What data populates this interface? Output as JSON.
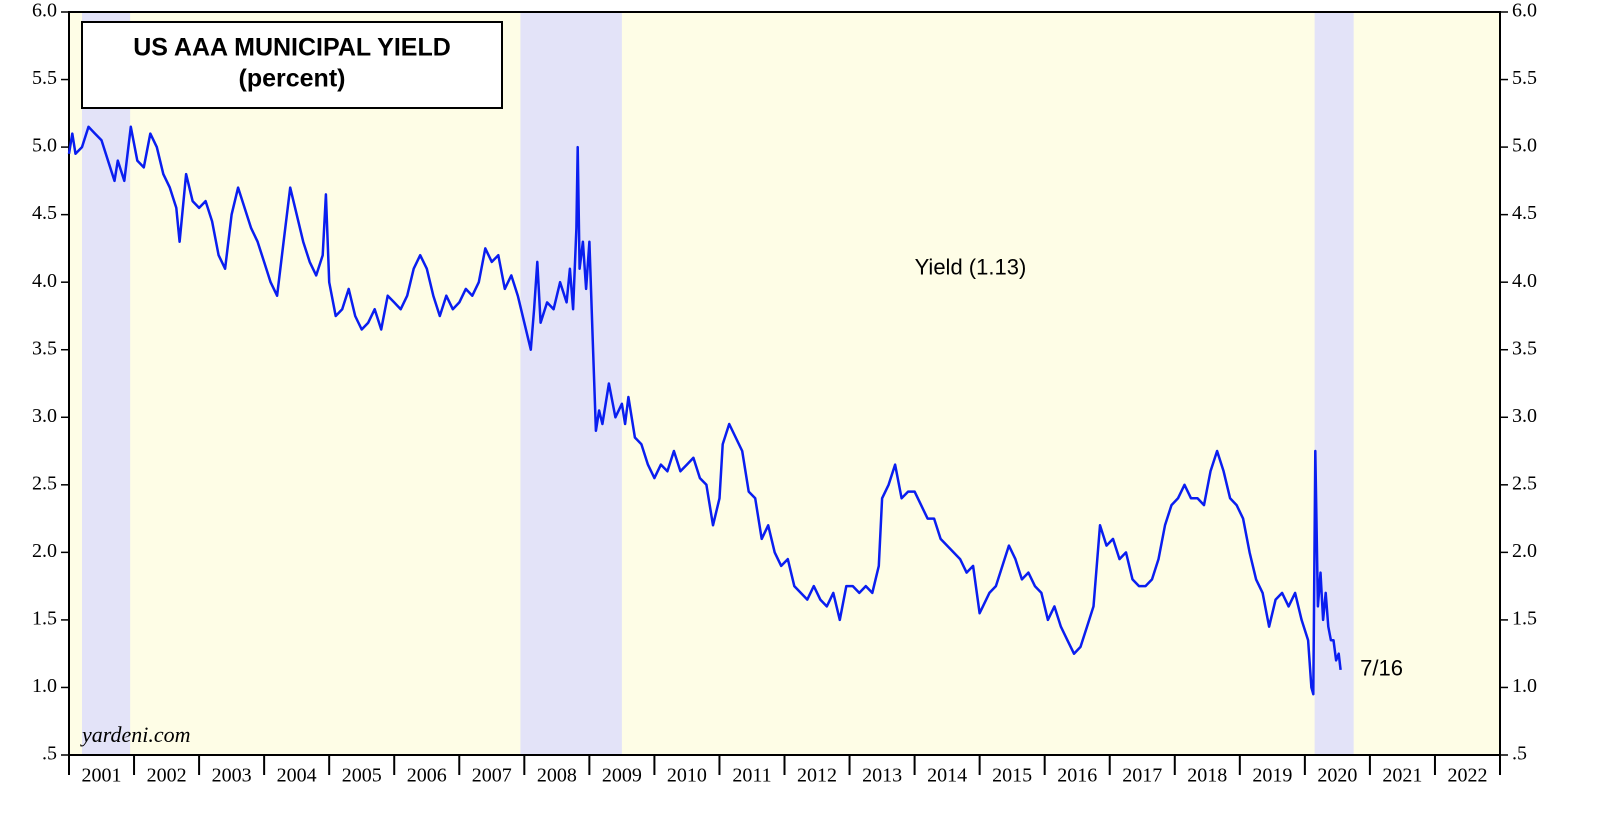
{
  "chart_data": {
    "type": "line",
    "title_lines": [
      "US AAA MUNICIPAL YIELD",
      "(percent)"
    ],
    "annotations": [
      {
        "text": "Yield (1.13)",
        "x": 2014.0,
        "y": 4.1
      },
      {
        "text": "7/16",
        "x": 2020.85,
        "y": 1.13
      }
    ],
    "source": "yardeni.com",
    "xlim": [
      2001,
      2023
    ],
    "xticks": [
      2001,
      2002,
      2003,
      2004,
      2005,
      2006,
      2007,
      2008,
      2009,
      2010,
      2011,
      2012,
      2013,
      2014,
      2015,
      2016,
      2017,
      2018,
      2019,
      2020,
      2021,
      2022
    ],
    "ylim": [
      0.5,
      6.0
    ],
    "yticks": [
      {
        "value": 0.5,
        "label": ".5"
      },
      {
        "value": 1.0,
        "label": "1.0"
      },
      {
        "value": 1.5,
        "label": "1.5"
      },
      {
        "value": 2.0,
        "label": "2.0"
      },
      {
        "value": 2.5,
        "label": "2.5"
      },
      {
        "value": 3.0,
        "label": "3.0"
      },
      {
        "value": 3.5,
        "label": "3.5"
      },
      {
        "value": 4.0,
        "label": "4.0"
      },
      {
        "value": 4.5,
        "label": "4.5"
      },
      {
        "value": 5.0,
        "label": "5.0"
      },
      {
        "value": 5.5,
        "label": "5.5"
      },
      {
        "value": 6.0,
        "label": "6.0"
      }
    ],
    "shaded_periods": [
      [
        2001.2,
        2001.94
      ],
      [
        2007.94,
        2009.5
      ],
      [
        2020.15,
        2020.75
      ]
    ],
    "shade_color": "#e3e3f8",
    "background": "#fefde6",
    "series": [
      {
        "color": "#0a1ef0",
        "x": [
          2001.0,
          2001.05,
          2001.1,
          2001.2,
          2001.3,
          2001.4,
          2001.5,
          2001.6,
          2001.7,
          2001.75,
          2001.85,
          2001.95,
          2002.05,
          2002.15,
          2002.25,
          2002.35,
          2002.45,
          2002.55,
          2002.65,
          2002.7,
          2002.8,
          2002.9,
          2003.0,
          2003.1,
          2003.2,
          2003.3,
          2003.4,
          2003.5,
          2003.6,
          2003.7,
          2003.8,
          2003.9,
          2004.0,
          2004.1,
          2004.2,
          2004.3,
          2004.4,
          2004.5,
          2004.6,
          2004.7,
          2004.8,
          2004.9,
          2004.95,
          2005.0,
          2005.1,
          2005.2,
          2005.3,
          2005.4,
          2005.5,
          2005.6,
          2005.7,
          2005.8,
          2005.9,
          2006.0,
          2006.1,
          2006.2,
          2006.3,
          2006.4,
          2006.5,
          2006.6,
          2006.7,
          2006.8,
          2006.9,
          2007.0,
          2007.1,
          2007.2,
          2007.3,
          2007.4,
          2007.5,
          2007.6,
          2007.7,
          2007.8,
          2007.9,
          2008.0,
          2008.1,
          2008.15,
          2008.2,
          2008.25,
          2008.35,
          2008.45,
          2008.55,
          2008.65,
          2008.7,
          2008.75,
          2008.8,
          2008.82,
          2008.85,
          2008.9,
          2008.95,
          2009.0,
          2009.05,
          2009.1,
          2009.15,
          2009.2,
          2009.3,
          2009.4,
          2009.5,
          2009.55,
          2009.6,
          2009.7,
          2009.8,
          2009.9,
          2010.0,
          2010.1,
          2010.2,
          2010.3,
          2010.4,
          2010.5,
          2010.6,
          2010.7,
          2010.8,
          2010.9,
          2011.0,
          2011.05,
          2011.15,
          2011.25,
          2011.35,
          2011.45,
          2011.55,
          2011.65,
          2011.75,
          2011.85,
          2011.95,
          2012.05,
          2012.15,
          2012.25,
          2012.35,
          2012.45,
          2012.55,
          2012.65,
          2012.75,
          2012.85,
          2012.95,
          2013.05,
          2013.15,
          2013.25,
          2013.35,
          2013.45,
          2013.5,
          2013.6,
          2013.7,
          2013.8,
          2013.9,
          2014.0,
          2014.1,
          2014.2,
          2014.3,
          2014.4,
          2014.5,
          2014.6,
          2014.7,
          2014.8,
          2014.9,
          2015.0,
          2015.05,
          2015.15,
          2015.25,
          2015.35,
          2015.45,
          2015.55,
          2015.65,
          2015.75,
          2015.85,
          2015.95,
          2016.05,
          2016.15,
          2016.25,
          2016.35,
          2016.45,
          2016.55,
          2016.65,
          2016.75,
          2016.85,
          2016.95,
          2017.05,
          2017.15,
          2017.25,
          2017.35,
          2017.45,
          2017.55,
          2017.65,
          2017.75,
          2017.85,
          2017.95,
          2018.05,
          2018.15,
          2018.25,
          2018.35,
          2018.45,
          2018.55,
          2018.65,
          2018.75,
          2018.85,
          2018.95,
          2019.05,
          2019.15,
          2019.25,
          2019.35,
          2019.45,
          2019.55,
          2019.65,
          2019.75,
          2019.85,
          2019.95,
          2020.05,
          2020.1,
          2020.13,
          2020.16,
          2020.2,
          2020.24,
          2020.28,
          2020.32,
          2020.36,
          2020.4,
          2020.44,
          2020.48,
          2020.52,
          2020.55
        ],
        "values": [
          4.95,
          5.1,
          4.95,
          5.0,
          5.15,
          5.1,
          5.05,
          4.9,
          4.75,
          4.9,
          4.75,
          5.15,
          4.9,
          4.85,
          5.1,
          5.0,
          4.8,
          4.7,
          4.55,
          4.3,
          4.8,
          4.6,
          4.55,
          4.6,
          4.45,
          4.2,
          4.1,
          4.5,
          4.7,
          4.55,
          4.4,
          4.3,
          4.15,
          4.0,
          3.9,
          4.3,
          4.7,
          4.5,
          4.3,
          4.15,
          4.05,
          4.2,
          4.65,
          4.0,
          3.75,
          3.8,
          3.95,
          3.75,
          3.65,
          3.7,
          3.8,
          3.65,
          3.9,
          3.85,
          3.8,
          3.9,
          4.1,
          4.2,
          4.1,
          3.9,
          3.75,
          3.9,
          3.8,
          3.85,
          3.95,
          3.9,
          4.0,
          4.25,
          4.15,
          4.2,
          3.95,
          4.05,
          3.9,
          3.7,
          3.5,
          3.8,
          4.15,
          3.7,
          3.85,
          3.8,
          4.0,
          3.85,
          4.1,
          3.8,
          4.4,
          5.0,
          4.1,
          4.3,
          3.95,
          4.3,
          3.6,
          2.9,
          3.05,
          2.95,
          3.25,
          3.0,
          3.1,
          2.95,
          3.15,
          2.85,
          2.8,
          2.65,
          2.55,
          2.65,
          2.6,
          2.75,
          2.6,
          2.65,
          2.7,
          2.55,
          2.5,
          2.2,
          2.4,
          2.8,
          2.95,
          2.85,
          2.75,
          2.45,
          2.4,
          2.1,
          2.2,
          2.0,
          1.9,
          1.95,
          1.75,
          1.7,
          1.65,
          1.75,
          1.65,
          1.6,
          1.7,
          1.5,
          1.75,
          1.75,
          1.7,
          1.75,
          1.7,
          1.9,
          2.4,
          2.5,
          2.65,
          2.4,
          2.45,
          2.45,
          2.35,
          2.25,
          2.25,
          2.1,
          2.05,
          2.0,
          1.95,
          1.85,
          1.9,
          1.55,
          1.6,
          1.7,
          1.75,
          1.9,
          2.05,
          1.95,
          1.8,
          1.85,
          1.75,
          1.7,
          1.5,
          1.6,
          1.45,
          1.35,
          1.25,
          1.3,
          1.45,
          1.6,
          2.2,
          2.05,
          2.1,
          1.95,
          2.0,
          1.8,
          1.75,
          1.75,
          1.8,
          1.95,
          2.2,
          2.35,
          2.4,
          2.5,
          2.4,
          2.4,
          2.35,
          2.6,
          2.75,
          2.6,
          2.4,
          2.35,
          2.25,
          2.0,
          1.8,
          1.7,
          1.45,
          1.65,
          1.7,
          1.6,
          1.7,
          1.5,
          1.35,
          1.0,
          0.95,
          2.75,
          1.6,
          1.85,
          1.5,
          1.7,
          1.45,
          1.35,
          1.35,
          1.2,
          1.25,
          1.13
        ]
      }
    ]
  }
}
